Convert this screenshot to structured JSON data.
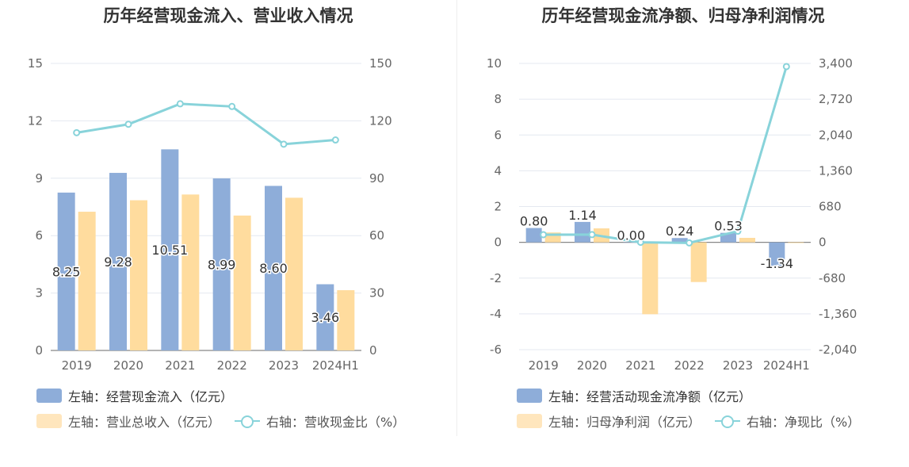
{
  "chart_data": [
    {
      "type": "bar",
      "title": "历年经营现金流入、营业收入情况",
      "categories": [
        "2019",
        "2020",
        "2021",
        "2022",
        "2023",
        "2024H1"
      ],
      "yleft": {
        "ticks": [
          "0",
          "3",
          "6",
          "9",
          "12",
          "15"
        ],
        "ylim": [
          0,
          15
        ]
      },
      "yright": {
        "ticks": [
          "0",
          "30",
          "60",
          "90",
          "120",
          "150"
        ],
        "ylim": [
          0,
          150
        ]
      },
      "series": [
        {
          "name": "左轴：经营现金流入（亿元）",
          "kind": "bar",
          "axis": "left",
          "color": "#8eadd9",
          "values": [
            8.25,
            9.28,
            10.51,
            8.99,
            8.6,
            3.46
          ],
          "labels": [
            "8.25",
            "9.28",
            "10.51",
            "8.99",
            "8.60",
            "3.46"
          ]
        },
        {
          "name": "左轴：营业总收入（亿元）",
          "kind": "bar",
          "axis": "left",
          "color": "#ffdc9e",
          "values": [
            7.25,
            7.85,
            8.15,
            7.05,
            7.98,
            3.15
          ]
        },
        {
          "name": "右轴：营收现金比（%）",
          "kind": "line",
          "axis": "right",
          "color": "#88d3da",
          "values": [
            113.8,
            118.2,
            128.9,
            127.5,
            107.8,
            110.0
          ]
        }
      ]
    },
    {
      "type": "bar",
      "title": "历年经营现金流净额、归母净利润情况",
      "categories": [
        "2019",
        "2020",
        "2021",
        "2022",
        "2023",
        "2024H1"
      ],
      "yleft": {
        "ticks": [
          "-6",
          "-4",
          "-2",
          "0",
          "2",
          "4",
          "6",
          "8",
          "10"
        ],
        "ylim": [
          -6,
          10
        ]
      },
      "yright": {
        "ticks": [
          "-2,040",
          "-1,360",
          "-680",
          "0",
          "680",
          "1,360",
          "2,040",
          "2,720",
          "3,400"
        ],
        "ylim": [
          -2040,
          3400
        ]
      },
      "series": [
        {
          "name": "左轴：经营活动现金流净额（亿元）",
          "kind": "bar",
          "axis": "left",
          "color": "#8eadd9",
          "values": [
            0.8,
            1.14,
            0.0,
            0.24,
            0.53,
            -1.34
          ],
          "labels": [
            "0.80",
            "1.14",
            "0.00",
            "0.24",
            "0.53",
            "-1.34"
          ]
        },
        {
          "name": "左轴：归母净利润（亿元）",
          "kind": "bar",
          "axis": "left",
          "color": "#ffdc9e",
          "values": [
            0.55,
            0.78,
            -4.02,
            -2.22,
            0.25,
            -0.04
          ]
        },
        {
          "name": "右轴：净现比（%）",
          "kind": "line",
          "axis": "right",
          "color": "#88d3da",
          "values": [
            145,
            146,
            0,
            -11,
            212,
            3340
          ]
        }
      ]
    }
  ]
}
